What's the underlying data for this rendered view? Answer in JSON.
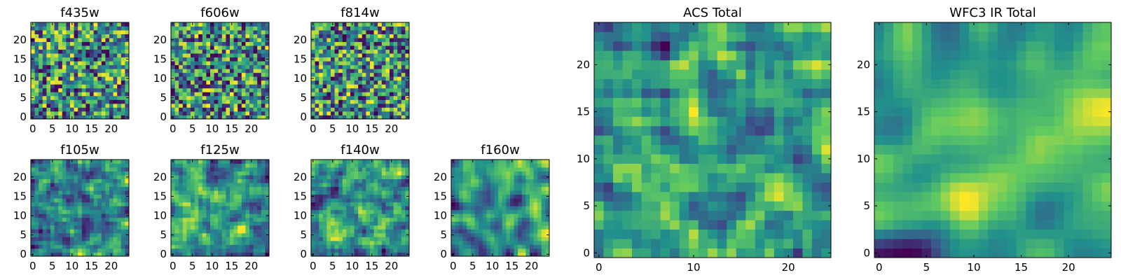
{
  "chart_data": [
    {
      "id": "f435w",
      "title": "f435w",
      "type": "heatmap",
      "grid_size": 25,
      "seed": 11,
      "smoothness": 0,
      "xticks": [
        0,
        5,
        10,
        15,
        20
      ],
      "yticks": [
        0,
        5,
        10,
        15,
        20
      ],
      "xlim": [
        0,
        25
      ],
      "ylim": [
        0,
        25
      ]
    },
    {
      "id": "f606w",
      "title": "f606w",
      "type": "heatmap",
      "grid_size": 25,
      "seed": 23,
      "smoothness": 0,
      "xticks": [
        0,
        5,
        10,
        15,
        20
      ],
      "yticks": [
        0,
        5,
        10,
        15,
        20
      ],
      "xlim": [
        0,
        25
      ],
      "ylim": [
        0,
        25
      ]
    },
    {
      "id": "f814w",
      "title": "f814w",
      "type": "heatmap",
      "grid_size": 25,
      "seed": 37,
      "smoothness": 0,
      "xticks": [
        0,
        5,
        10,
        15,
        20
      ],
      "yticks": [
        0,
        5,
        10,
        15,
        20
      ],
      "xlim": [
        0,
        25
      ],
      "ylim": [
        0,
        25
      ]
    },
    {
      "id": "f105w",
      "title": "f105w",
      "type": "heatmap",
      "grid_size": 25,
      "seed": 41,
      "smoothness": 1,
      "xticks": [
        0,
        5,
        10,
        15,
        20
      ],
      "yticks": [
        0,
        5,
        10,
        15,
        20
      ],
      "xlim": [
        0,
        25
      ],
      "ylim": [
        0,
        25
      ]
    },
    {
      "id": "f125w",
      "title": "f125w",
      "type": "heatmap",
      "grid_size": 25,
      "seed": 53,
      "smoothness": 1,
      "xticks": [
        0,
        5,
        10,
        15,
        20
      ],
      "yticks": [
        0,
        5,
        10,
        15,
        20
      ],
      "xlim": [
        0,
        25
      ],
      "ylim": [
        0,
        25
      ]
    },
    {
      "id": "f140w",
      "title": "f140w",
      "type": "heatmap",
      "grid_size": 25,
      "seed": 67,
      "smoothness": 1,
      "xticks": [
        0,
        5,
        10,
        15,
        20
      ],
      "yticks": [
        0,
        5,
        10,
        15,
        20
      ],
      "xlim": [
        0,
        25
      ],
      "ylim": [
        0,
        25
      ]
    },
    {
      "id": "f160w",
      "title": "f160w",
      "type": "heatmap",
      "grid_size": 25,
      "seed": 79,
      "smoothness": 2,
      "xticks": [
        0,
        5,
        10,
        15,
        20
      ],
      "yticks": [
        0,
        5,
        10,
        15,
        20
      ],
      "xlim": [
        0,
        25
      ],
      "ylim": [
        0,
        25
      ]
    },
    {
      "id": "acs-total",
      "title": "ACS Total",
      "type": "heatmap",
      "grid_size": 25,
      "seed": 89,
      "smoothness": 1,
      "xticks": [
        0,
        10,
        20
      ],
      "yticks": [
        0,
        5,
        10,
        15,
        20
      ],
      "xlim": [
        0,
        25
      ],
      "ylim": [
        0,
        25
      ]
    },
    {
      "id": "wfc3-ir-total",
      "title": "WFC3 IR Total",
      "type": "heatmap",
      "grid_size": 25,
      "seed": 97,
      "smoothness": 3,
      "xticks": [
        0,
        5,
        10,
        15,
        20
      ],
      "yticks": [
        0,
        5,
        10,
        15,
        20
      ],
      "xlim": [
        0,
        25
      ],
      "ylim": [
        0,
        25
      ]
    }
  ],
  "colormap": {
    "name": "viridis",
    "stops": [
      "#440154",
      "#3b528b",
      "#21918c",
      "#5ec962",
      "#fde725"
    ]
  }
}
